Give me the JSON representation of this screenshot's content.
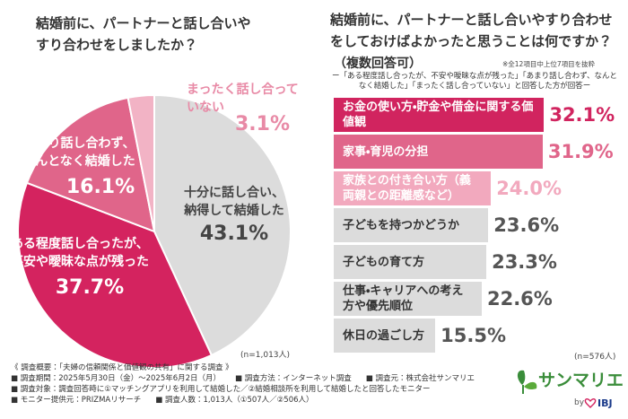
{
  "chart_data": [
    {
      "type": "pie",
      "title": "結婚前に、パートナーと話し合いやすり合わせをしましたか？",
      "categories": [
        "十分に話し合い、納得して結婚した",
        "ある程度話し合ったが、不安や曖昧な点が残った",
        "あまり話し合わず、なんとなく結婚した",
        "まったく話し合っていない"
      ],
      "values": [
        43.1,
        37.7,
        16.1,
        3.1
      ],
      "value_labels": [
        "43.1%",
        "37.7%",
        "16.1%",
        "3.1%"
      ],
      "colors": [
        "#dcdcdc",
        "#d4235f",
        "#e0658a",
        "#f2b3c5"
      ],
      "label_colors": [
        "#444444",
        "#ffffff",
        "#ffffff",
        "#e88aa6"
      ],
      "note": "(n=1,013人)"
    },
    {
      "type": "hbar",
      "title": "結婚前に、パートナーと話し合いやすり合わせをしておけばよかったと思うことは何ですか？",
      "subtitle": "（複数回答可）",
      "note": "※全12項目中上位7項目を抜粋",
      "description": "ー「ある程度話し合ったが、不安や曖昧な点が残った」「あまり話し合わず、なんとなく結婚した」「まったく話し合っていない」と回答した方が回答ー",
      "categories": [
        "お金の使い方・貯金や借金に関する価値観",
        "家事・育児の分担",
        "家族との付き合い方（義両親との距離感など）",
        "子どもを持つかどうか",
        "子どもの育て方",
        "仕事・キャリアへの考え方や優先順位",
        "休日の過ごし方"
      ],
      "values": [
        32.1,
        31.9,
        24.0,
        23.6,
        23.3,
        22.6,
        15.5
      ],
      "value_labels": [
        "32.1%",
        "31.9%",
        "24.0%",
        "23.6%",
        "23.3%",
        "22.6%",
        "15.5%"
      ],
      "colors": [
        "#d1245f",
        "#e0658a",
        "#f2a9be",
        "#dcdcdc",
        "#dcdcdc",
        "#dcdcdc",
        "#dcdcdc"
      ],
      "label_colors": [
        "#d1245f",
        "#e0658a",
        "#f2a9be",
        "#555555",
        "#555555",
        "#555555",
        "#555555"
      ],
      "sample": "(n=576人)"
    }
  ],
  "footer": {
    "heading": "《 調査概要：「夫婦の信頼関係と価値観の共有」に関する調査 》",
    "items": [
      "■ 調査期間：2025年5月30日（金）〜2025年6月2日（月）",
      "■ 調査方法：インターネット調査",
      "■ 調査元：株式会社サンマリエ",
      "■ 調査対象：調査回答時に①マッチングアプリを利用して結婚した／②結婚相談所を利用して結婚したと回答したモニター",
      "■ モニター提供元：PRIZMAリサーチ",
      "■ 調査人数：1,013人（①507人／②506人）"
    ]
  },
  "logo": {
    "name": "サンマリエ",
    "by": "by",
    "brand": "IBJ"
  }
}
